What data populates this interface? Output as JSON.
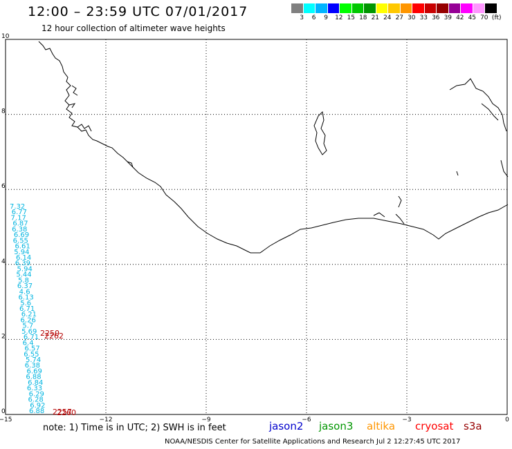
{
  "header": {
    "title": "12:00 – 23:59 UTC 07/01/2017",
    "subtitle": "12 hour collection of altimeter wave heights"
  },
  "colorbar": {
    "colors": [
      "#808080",
      "#00ffff",
      "#00b4ff",
      "#0000ff",
      "#00ff00",
      "#00c800",
      "#009600",
      "#ffff00",
      "#ffc800",
      "#ff9600",
      "#ff0000",
      "#c80000",
      "#960000",
      "#960096",
      "#ff00ff",
      "#ff96ff",
      "#000000"
    ],
    "labels": [
      "3",
      "6",
      "9",
      "12",
      "15",
      "18",
      "21",
      "24",
      "27",
      "30",
      "33",
      "36",
      "39",
      "42",
      "45",
      "70",
      "(ft)"
    ]
  },
  "axes": {
    "x_ticks": [
      "−15",
      "−12",
      "−9",
      "−6",
      "−3",
      "0"
    ],
    "y_ticks": [
      "0",
      "2",
      "4",
      "6",
      "8",
      "10"
    ]
  },
  "wave_labels": {
    "cyan": [
      "7.32",
      "6.77",
      "7.17",
      "6.87",
      "6.38",
      "6.69",
      "6.55",
      "6.61",
      "5.94",
      "6.14",
      "6.39",
      "5.94",
      "5.44",
      "5.8",
      "6.37",
      "4.6",
      "6.13",
      "5.6",
      "6.71",
      "6.21",
      "6.26",
      "5.7",
      "5.69",
      "6.71",
      "6.4",
      "6.57",
      "6.55",
      "5.74",
      "6.38",
      "6.69",
      "6.88",
      "6.84",
      "6.33",
      "6.29",
      "6.28",
      "6.92",
      "6.88"
    ],
    "red": [
      "2250",
      "2262",
      "2257",
      "2260"
    ]
  },
  "note": "note: 1) Time is in UTC; 2) SWH is in feet",
  "missions": [
    {
      "name": "jason2",
      "color": "#0000cc"
    },
    {
      "name": "jason3",
      "color": "#009600"
    },
    {
      "name": "altika",
      "color": "#ff9600"
    },
    {
      "name": "cryosat",
      "color": "#ff0000"
    },
    {
      "name": "s3a",
      "color": "#960000"
    }
  ],
  "footer": "NOAA/NESDIS Center for Satellite Applications and Research    Jul 2 12:27:45 UTC 2017"
}
